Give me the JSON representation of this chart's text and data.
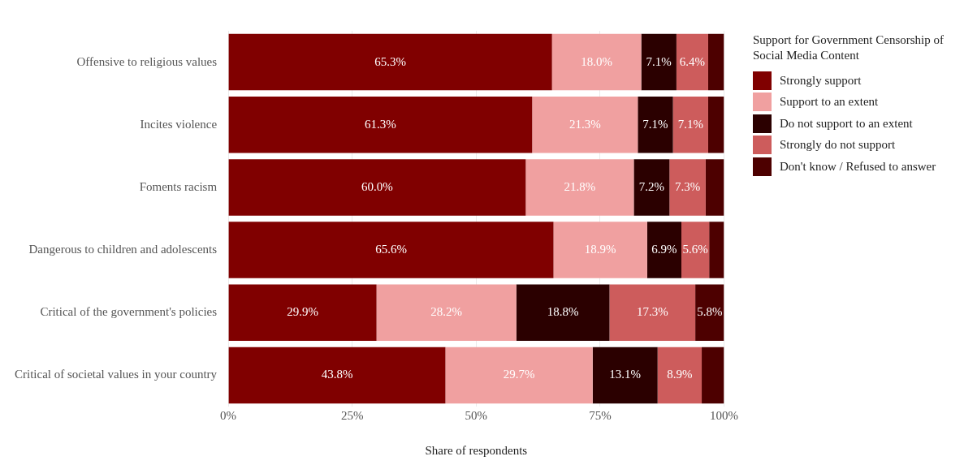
{
  "chart_data": {
    "type": "bar",
    "orientation": "horizontal",
    "stacked": true,
    "xlabel": "Share of respondents",
    "legend_title": "Support for Government Censorship of Social Media Content",
    "legend": "top right",
    "grid": "x",
    "categories": [
      "Offensive to religious values",
      "Incites violence",
      "Foments racism",
      "Dangerous to children and adolescents",
      "Critical of the government's policies",
      "Critical of societal values in your country"
    ],
    "xlim": [
      0,
      100
    ],
    "xticks": [
      {
        "value": 0,
        "label": "0%"
      },
      {
        "value": 25,
        "label": "25%"
      },
      {
        "value": 50,
        "label": "50%"
      },
      {
        "value": 75,
        "label": "75%"
      },
      {
        "value": 100,
        "label": "100%"
      }
    ],
    "series": [
      {
        "name": "Strongly support",
        "color": "#800000",
        "values": [
          65.3,
          61.3,
          60.0,
          65.6,
          29.9,
          43.8
        ],
        "value_labels": [
          "65.3%",
          "61.3%",
          "60.0%",
          "65.6%",
          "29.9%",
          "43.8%"
        ]
      },
      {
        "name": "Support to an extent",
        "color": "#f0a0a0",
        "values": [
          18.0,
          21.3,
          21.8,
          18.9,
          28.2,
          29.7
        ],
        "value_labels": [
          "18.0%",
          "21.3%",
          "21.8%",
          "18.9%",
          "28.2%",
          "29.7%"
        ]
      },
      {
        "name": "Do not support to an extent",
        "color": "#2b0000",
        "values": [
          7.1,
          7.1,
          7.2,
          6.9,
          18.8,
          13.1
        ],
        "value_labels": [
          "7.1%",
          "7.1%",
          "7.2%",
          "6.9%",
          "18.8%",
          "13.1%"
        ]
      },
      {
        "name": "Strongly do not support",
        "color": "#cd5c5c",
        "values": [
          6.4,
          7.1,
          7.3,
          5.6,
          17.3,
          8.9
        ],
        "value_labels": [
          "6.4%",
          "7.1%",
          "7.3%",
          "5.6%",
          "17.3%",
          "8.9%"
        ]
      },
      {
        "name": "Don't know / Refused to answer",
        "color": "#4d0000",
        "values": [
          3.2,
          3.2,
          3.7,
          3.0,
          5.8,
          4.5
        ],
        "value_labels": [
          null,
          null,
          null,
          null,
          "5.8%",
          null
        ]
      }
    ]
  }
}
